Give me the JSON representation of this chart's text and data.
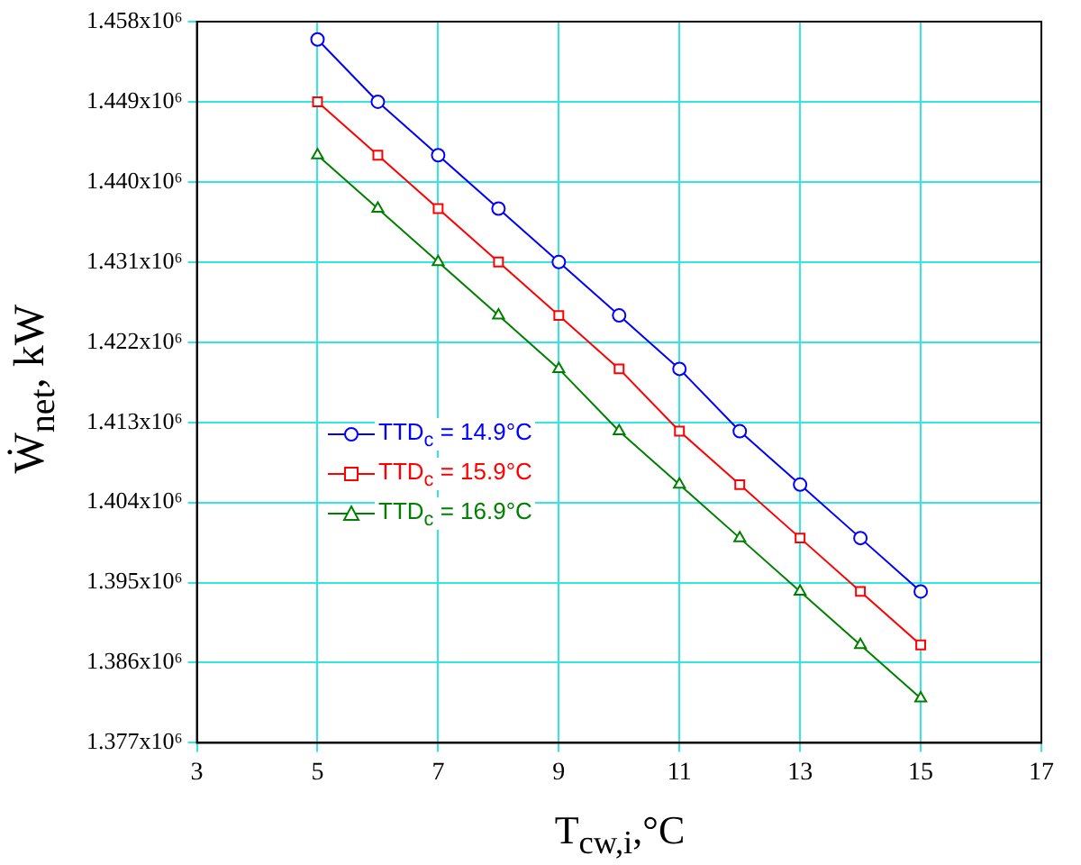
{
  "chart_data": {
    "type": "line",
    "xlabel": "T$_{cw,i}$,°C",
    "ylabel": "Ẇ$_{net}$, kW",
    "x": [
      5,
      6,
      7,
      8,
      9,
      10,
      11,
      12,
      13,
      14,
      15
    ],
    "series": [
      {
        "name": "TTD$_{c}$ = 14.9°C",
        "color": "#0000ff",
        "marker": "circle",
        "values": [
          1456000,
          1449000,
          1443000,
          1437000,
          1431000,
          1425000,
          1419000,
          1412000,
          1406000,
          1400000,
          1394000
        ]
      },
      {
        "name": "TTD$_{c}$ = 15.9°C",
        "color": "#ff0000",
        "marker": "square",
        "values": [
          1449000,
          1443000,
          1437000,
          1431000,
          1425000,
          1419000,
          1412000,
          1406000,
          1400000,
          1394000,
          1388000
        ]
      },
      {
        "name": "TTD$_{c}$ = 16.9°C",
        "color": "#008000",
        "marker": "triangle",
        "values": [
          1443000,
          1437000,
          1431000,
          1425000,
          1419000,
          1412000,
          1406000,
          1400000,
          1394000,
          1388000,
          1382000
        ]
      }
    ],
    "xlim": [
      3,
      17
    ],
    "xticks": [
      3,
      5,
      7,
      9,
      11,
      13,
      15,
      17
    ],
    "ylim": [
      1377000,
      1458000
    ],
    "yticks": [
      {
        "value": 1377000,
        "label": "1.377x10⁶"
      },
      {
        "value": 1386000,
        "label": "1.386x10⁶"
      },
      {
        "value": 1395000,
        "label": "1.395x10⁶"
      },
      {
        "value": 1404000,
        "label": "1.404x10⁶"
      },
      {
        "value": 1413000,
        "label": "1.413x10⁶"
      },
      {
        "value": 1422000,
        "label": "1.422x10⁶"
      },
      {
        "value": 1431000,
        "label": "1.431x10⁶"
      },
      {
        "value": 1440000,
        "label": "1.440x10⁶"
      },
      {
        "value": 1449000,
        "label": "1.449x10⁶"
      },
      {
        "value": 1458000,
        "label": "1.458x10⁶"
      }
    ],
    "grid": true,
    "legend": "left",
    "line_style": "solid"
  }
}
